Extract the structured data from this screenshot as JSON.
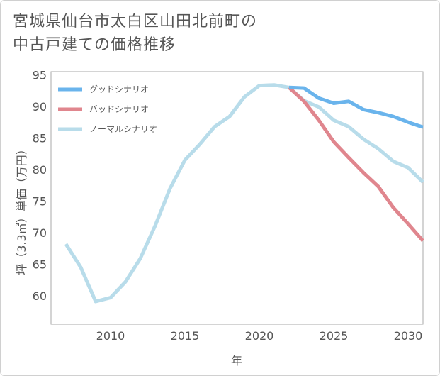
{
  "title_lines": [
    "宮城県仙台市太白区山田北前町の",
    "中古戸建ての価格推移"
  ],
  "chart_data": {
    "type": "line",
    "title": "宮城県仙台市太白区山田北前町の中古戸建ての価格推移",
    "xlabel": "年",
    "ylabel": "坪（3.3㎡）単価（万円）",
    "xlim": [
      2006,
      2031
    ],
    "ylim": [
      55.5,
      95.5
    ],
    "xticks": [
      2010,
      2015,
      2020,
      2025,
      2030
    ],
    "yticks": [
      60,
      65,
      70,
      75,
      80,
      85,
      90,
      95
    ],
    "grid": false,
    "legend_position": "top-left",
    "series": [
      {
        "name": "グッドシナリオ",
        "color": "#6ab4ec",
        "x": [
          2022,
          2023,
          2024,
          2025,
          2026,
          2027,
          2028,
          2029,
          2030,
          2031
        ],
        "y": [
          93.0,
          92.9,
          91.3,
          90.5,
          90.8,
          89.5,
          89.0,
          88.4,
          87.5,
          86.7
        ]
      },
      {
        "name": "バッドシナリオ",
        "color": "#e0868e",
        "x": [
          2022,
          2023,
          2024,
          2025,
          2026,
          2027,
          2028,
          2029,
          2030,
          2031
        ],
        "y": [
          93.0,
          90.8,
          87.8,
          84.4,
          81.9,
          79.5,
          77.3,
          74.0,
          71.4,
          68.7
        ]
      },
      {
        "name": "ノーマルシナリオ",
        "color": "#b8dcea",
        "x": [
          2007,
          2008,
          2009,
          2010,
          2011,
          2012,
          2013,
          2014,
          2015,
          2016,
          2017,
          2018,
          2019,
          2020,
          2021,
          2022,
          2023,
          2024,
          2025,
          2026,
          2027,
          2028,
          2029,
          2030,
          2031
        ],
        "y": [
          68.2,
          64.5,
          59.1,
          59.7,
          62.2,
          65.9,
          71.1,
          77.0,
          81.5,
          84.0,
          86.8,
          88.4,
          91.5,
          93.3,
          93.4,
          93.0,
          90.9,
          89.9,
          87.8,
          86.8,
          84.8,
          83.3,
          81.3,
          80.3,
          78.0
        ]
      }
    ]
  }
}
